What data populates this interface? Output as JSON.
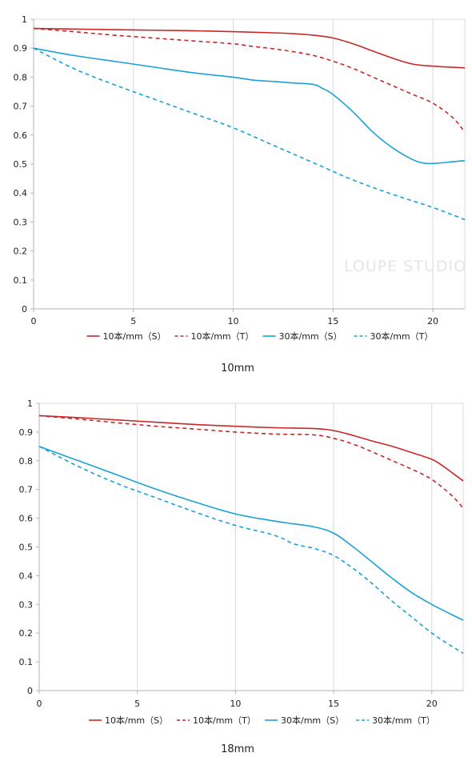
{
  "watermark": "LOUPE STUDIO",
  "colors": {
    "red": "#c62828",
    "blue": "#1ba1d6",
    "grid": "#d9d9d9",
    "axis": "#b3b3b3"
  },
  "chart_data": [
    {
      "type": "line",
      "title": "",
      "caption": "10mm",
      "xlabel": "",
      "ylabel": "",
      "xlim": [
        0,
        21.6
      ],
      "ylim": [
        0,
        1
      ],
      "x_ticks": [
        "0",
        "5",
        "10",
        "15",
        "20"
      ],
      "y_ticks": [
        "0",
        "0.1",
        "0.2",
        "0.3",
        "0.4",
        "0.5",
        "0.6",
        "0.7",
        "0.8",
        "0.9",
        "1"
      ],
      "grid": "vertical",
      "legend": "bottom",
      "series": [
        {
          "name": "10本/mm（S）",
          "color": "#c62828",
          "style": "solid",
          "x": [
            0,
            2,
            4,
            6,
            8,
            10,
            12,
            13,
            14,
            15,
            16,
            17,
            18,
            19,
            20,
            21,
            21.6
          ],
          "y": [
            0.968,
            0.966,
            0.964,
            0.962,
            0.96,
            0.957,
            0.953,
            0.95,
            0.945,
            0.935,
            0.915,
            0.89,
            0.865,
            0.845,
            0.838,
            0.834,
            0.832
          ]
        },
        {
          "name": "10本/mm（T）",
          "color": "#c62828",
          "style": "dashed",
          "x": [
            0,
            2,
            4,
            6,
            8,
            10,
            11,
            12,
            13,
            14,
            15,
            16,
            17,
            18,
            19,
            20,
            21,
            21.6
          ],
          "y": [
            0.968,
            0.957,
            0.945,
            0.935,
            0.925,
            0.915,
            0.906,
            0.898,
            0.888,
            0.875,
            0.855,
            0.83,
            0.8,
            0.77,
            0.74,
            0.71,
            0.66,
            0.61
          ]
        },
        {
          "name": "30本/mm（S）",
          "color": "#1ba1d6",
          "style": "solid",
          "x": [
            0,
            2,
            4,
            6,
            8,
            10,
            11,
            12,
            13,
            14,
            14.5,
            15,
            16,
            17,
            18,
            19,
            19.5,
            20,
            21,
            21.6
          ],
          "y": [
            0.9,
            0.875,
            0.855,
            0.835,
            0.815,
            0.8,
            0.79,
            0.785,
            0.78,
            0.775,
            0.76,
            0.74,
            0.68,
            0.61,
            0.555,
            0.515,
            0.504,
            0.502,
            0.508,
            0.512
          ]
        },
        {
          "name": "30本/mm（T）",
          "color": "#1ba1d6",
          "style": "dashed",
          "x": [
            0,
            2,
            4,
            6,
            8,
            10,
            12,
            14,
            16,
            18,
            20,
            21.6
          ],
          "y": [
            0.9,
            0.83,
            0.775,
            0.725,
            0.675,
            0.625,
            0.565,
            0.505,
            0.445,
            0.395,
            0.35,
            0.308
          ]
        }
      ]
    },
    {
      "type": "line",
      "title": "",
      "caption": "18mm",
      "xlabel": "",
      "ylabel": "",
      "xlim": [
        0,
        21.6
      ],
      "ylim": [
        0,
        1
      ],
      "x_ticks": [
        "0",
        "5",
        "10",
        "15",
        "20"
      ],
      "y_ticks": [
        "0",
        "0.1",
        "0.2",
        "0.3",
        "0.4",
        "0.5",
        "0.6",
        "0.7",
        "0.8",
        "0.9",
        "1"
      ],
      "grid": "vertical",
      "legend": "bottom",
      "series": [
        {
          "name": "10本/mm（S）",
          "color": "#c62828",
          "style": "solid",
          "x": [
            0,
            2,
            4,
            6,
            8,
            10,
            12,
            14,
            15,
            16,
            17,
            18,
            19,
            20,
            20.5,
            21,
            21.6
          ],
          "y": [
            0.957,
            0.95,
            0.942,
            0.934,
            0.926,
            0.92,
            0.915,
            0.912,
            0.905,
            0.888,
            0.868,
            0.85,
            0.828,
            0.805,
            0.785,
            0.76,
            0.73
          ]
        },
        {
          "name": "10本/mm（T）",
          "color": "#c62828",
          "style": "dashed",
          "x": [
            0,
            2,
            4,
            6,
            8,
            10,
            12,
            14,
            15,
            16,
            17,
            18,
            19,
            20,
            21,
            21.6
          ],
          "y": [
            0.957,
            0.945,
            0.932,
            0.92,
            0.91,
            0.9,
            0.893,
            0.89,
            0.878,
            0.858,
            0.83,
            0.8,
            0.77,
            0.735,
            0.68,
            0.635
          ]
        },
        {
          "name": "30本/mm（S）",
          "color": "#1ba1d6",
          "style": "solid",
          "x": [
            0,
            2,
            4,
            6,
            8,
            10,
            12,
            13,
            14,
            15,
            16,
            17,
            18,
            19,
            20,
            21,
            21.6
          ],
          "y": [
            0.85,
            0.8,
            0.75,
            0.7,
            0.655,
            0.615,
            0.59,
            0.58,
            0.57,
            0.548,
            0.5,
            0.445,
            0.39,
            0.34,
            0.3,
            0.265,
            0.245
          ]
        },
        {
          "name": "30本/mm（T）",
          "color": "#1ba1d6",
          "style": "dashed",
          "x": [
            0,
            2,
            4,
            6,
            8,
            10,
            12,
            13,
            14,
            15,
            16,
            17,
            18,
            19,
            20,
            21,
            21.6
          ],
          "y": [
            0.85,
            0.78,
            0.72,
            0.67,
            0.62,
            0.575,
            0.54,
            0.51,
            0.495,
            0.47,
            0.425,
            0.37,
            0.31,
            0.255,
            0.2,
            0.155,
            0.13
          ]
        }
      ]
    }
  ]
}
